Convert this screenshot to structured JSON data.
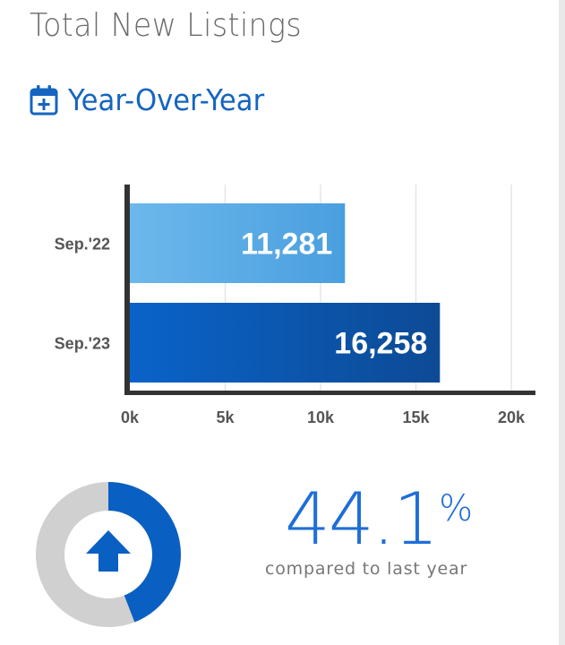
{
  "header": {
    "title": "Total New Listings",
    "subtitle": "Year-Over-Year",
    "subtitle_icon": "calendar-plus-icon"
  },
  "chart_data": {
    "type": "bar",
    "orientation": "horizontal",
    "categories": [
      "Sep.'22",
      "Sep.'23"
    ],
    "values": [
      11281,
      16258
    ],
    "value_labels": [
      "11,281",
      "16,258"
    ],
    "xlim": [
      0,
      20000
    ],
    "x_ticks": [
      0,
      5000,
      10000,
      15000,
      20000
    ],
    "x_tick_labels": [
      "0k",
      "5k",
      "10k",
      "15k",
      "20k"
    ],
    "grid": true,
    "colors": {
      "bar_light": [
        "#6cb8ec",
        "#4a9fdf"
      ],
      "bar_dark": [
        "#0a63c9",
        "#0d4a95"
      ],
      "axis": "#333333",
      "grid": "#e5e5e5"
    }
  },
  "summary": {
    "percent_value": "44.1",
    "percent_sign": "%",
    "caption": "compared to last year",
    "direction": "up",
    "gauge_fraction": 0.441,
    "gauge_icon": "arrow-up-icon",
    "colors": {
      "fill": "#0a5fc2",
      "track": "#d0d0d0",
      "accent": "#1e6ed8"
    }
  }
}
